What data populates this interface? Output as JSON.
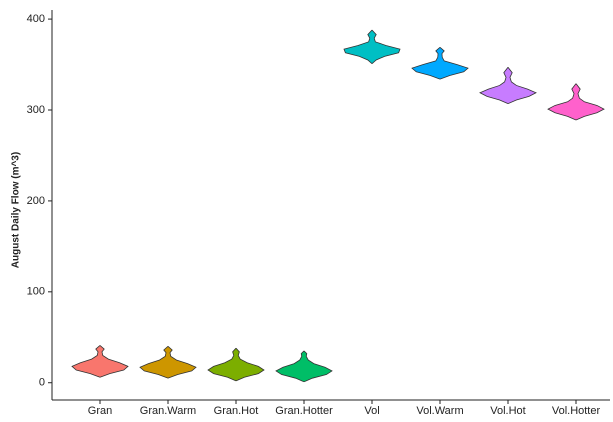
{
  "chart_data": {
    "type": "violin",
    "ylabel": "August Daily Flow (m^3)",
    "ylim": [
      -19,
      410
    ],
    "yticks": [
      0,
      100,
      200,
      300,
      400
    ],
    "grid": false,
    "series": [
      {
        "name": "Gran",
        "color": "#F8766D",
        "y": [
          6,
          10,
          14,
          18,
          22,
          26,
          30,
          34,
          37,
          41
        ],
        "density": [
          0,
          0.35,
          0.85,
          1,
          0.7,
          0.3,
          0.1,
          0.07,
          0.15,
          0
        ]
      },
      {
        "name": "Gran.Warm",
        "color": "#CD9600",
        "y": [
          5,
          9,
          13,
          17,
          21,
          25,
          29,
          33,
          36,
          40
        ],
        "density": [
          0,
          0.35,
          0.85,
          1,
          0.7,
          0.3,
          0.1,
          0.07,
          0.15,
          0
        ]
      },
      {
        "name": "Gran.Hot",
        "color": "#7CAE00",
        "y": [
          2,
          6,
          10,
          14,
          18,
          22,
          26,
          30,
          34,
          38
        ],
        "density": [
          0,
          0.3,
          0.8,
          1,
          0.8,
          0.4,
          0.15,
          0.08,
          0.12,
          0
        ]
      },
      {
        "name": "Gran.Hotter",
        "color": "#00BE67",
        "y": [
          1,
          5,
          9,
          13,
          17,
          21,
          25,
          29,
          32,
          35
        ],
        "density": [
          0,
          0.3,
          0.8,
          1,
          0.75,
          0.35,
          0.15,
          0.08,
          0.1,
          0
        ]
      },
      {
        "name": "Vol",
        "color": "#00BFC4",
        "y": [
          351,
          355,
          359,
          363,
          367,
          371,
          375,
          379,
          383,
          388
        ],
        "density": [
          0,
          0.15,
          0.45,
          0.95,
          1,
          0.5,
          0.12,
          0.08,
          0.15,
          0
        ]
      },
      {
        "name": "Vol.Warm",
        "color": "#00A9FF",
        "y": [
          334,
          338,
          342,
          346,
          350,
          354,
          358,
          362,
          365,
          369
        ],
        "density": [
          0,
          0.35,
          0.85,
          1,
          0.6,
          0.15,
          0.08,
          0.07,
          0.15,
          0
        ]
      },
      {
        "name": "Vol.Hot",
        "color": "#C77CFF",
        "y": [
          307,
          311,
          315,
          319,
          323,
          327,
          331,
          336,
          341,
          347
        ],
        "density": [
          0,
          0.3,
          0.75,
          1,
          0.7,
          0.3,
          0.12,
          0.07,
          0.15,
          0
        ]
      },
      {
        "name": "Vol.Hotter",
        "color": "#FF61CC",
        "y": [
          289,
          293,
          297,
          301,
          305,
          309,
          313,
          318,
          323,
          329
        ],
        "density": [
          0,
          0.3,
          0.75,
          1,
          0.75,
          0.3,
          0.12,
          0.07,
          0.15,
          0
        ]
      }
    ]
  }
}
